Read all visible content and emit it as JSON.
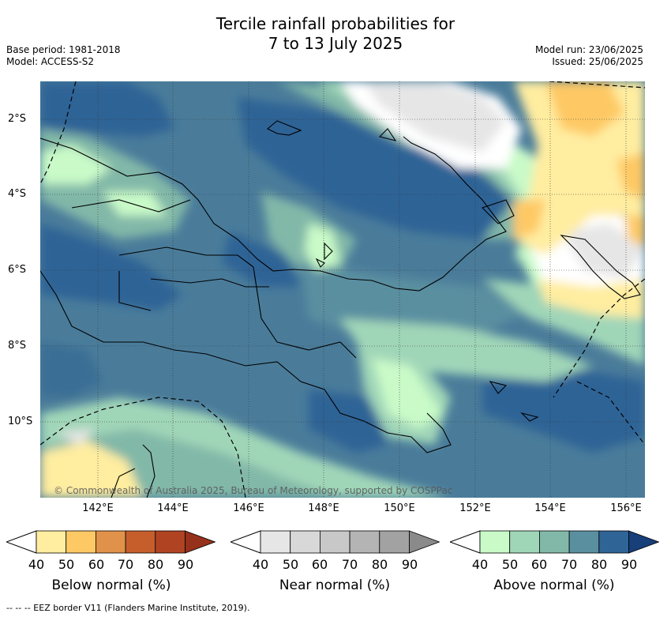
{
  "header": {
    "title_line1": "Tercile rainfall probabilities for",
    "title_line2": "7 to 13 July 2025",
    "base_period": "Base period: 1981-2018",
    "model": "Model: ACCESS-S2",
    "model_run": "Model run: 23/06/2025",
    "issued": "Issued: 25/06/2025"
  },
  "axes": {
    "lat_labels": [
      "2°S",
      "4°S",
      "6°S",
      "8°S",
      "10°S"
    ],
    "lon_labels": [
      "142°E",
      "144°E",
      "146°E",
      "148°E",
      "150°E",
      "152°E",
      "154°E",
      "156°E"
    ]
  },
  "copyright": "© Commonwealth of Australia 2025, Bureau of Meteorology, supported by COSPPac",
  "legends": [
    {
      "title": "Below normal (%)",
      "ticks": [
        "40",
        "50",
        "60",
        "70",
        "80",
        "90"
      ],
      "colors": [
        "#ffeda0",
        "#fec965",
        "#e0924a",
        "#c65e2c",
        "#b04422",
        "#96311b"
      ]
    },
    {
      "title": "Near normal (%)",
      "ticks": [
        "40",
        "50",
        "60",
        "70",
        "80",
        "90"
      ],
      "colors": [
        "#e6e6e6",
        "#d8d8d8",
        "#c8c8c8",
        "#b4b4b4",
        "#a2a2a2",
        "#8a8a8a"
      ]
    },
    {
      "title": "Above normal (%)",
      "ticks": [
        "40",
        "50",
        "60",
        "70",
        "80",
        "90"
      ],
      "colors": [
        "#c9fac8",
        "#a0d6b8",
        "#82b8a8",
        "#5a8fa0",
        "#2f6496",
        "#173f7a"
      ]
    }
  ],
  "footer": "-- -- -- EEZ border V11 (Flanders Marine Institute, 2019)."
}
